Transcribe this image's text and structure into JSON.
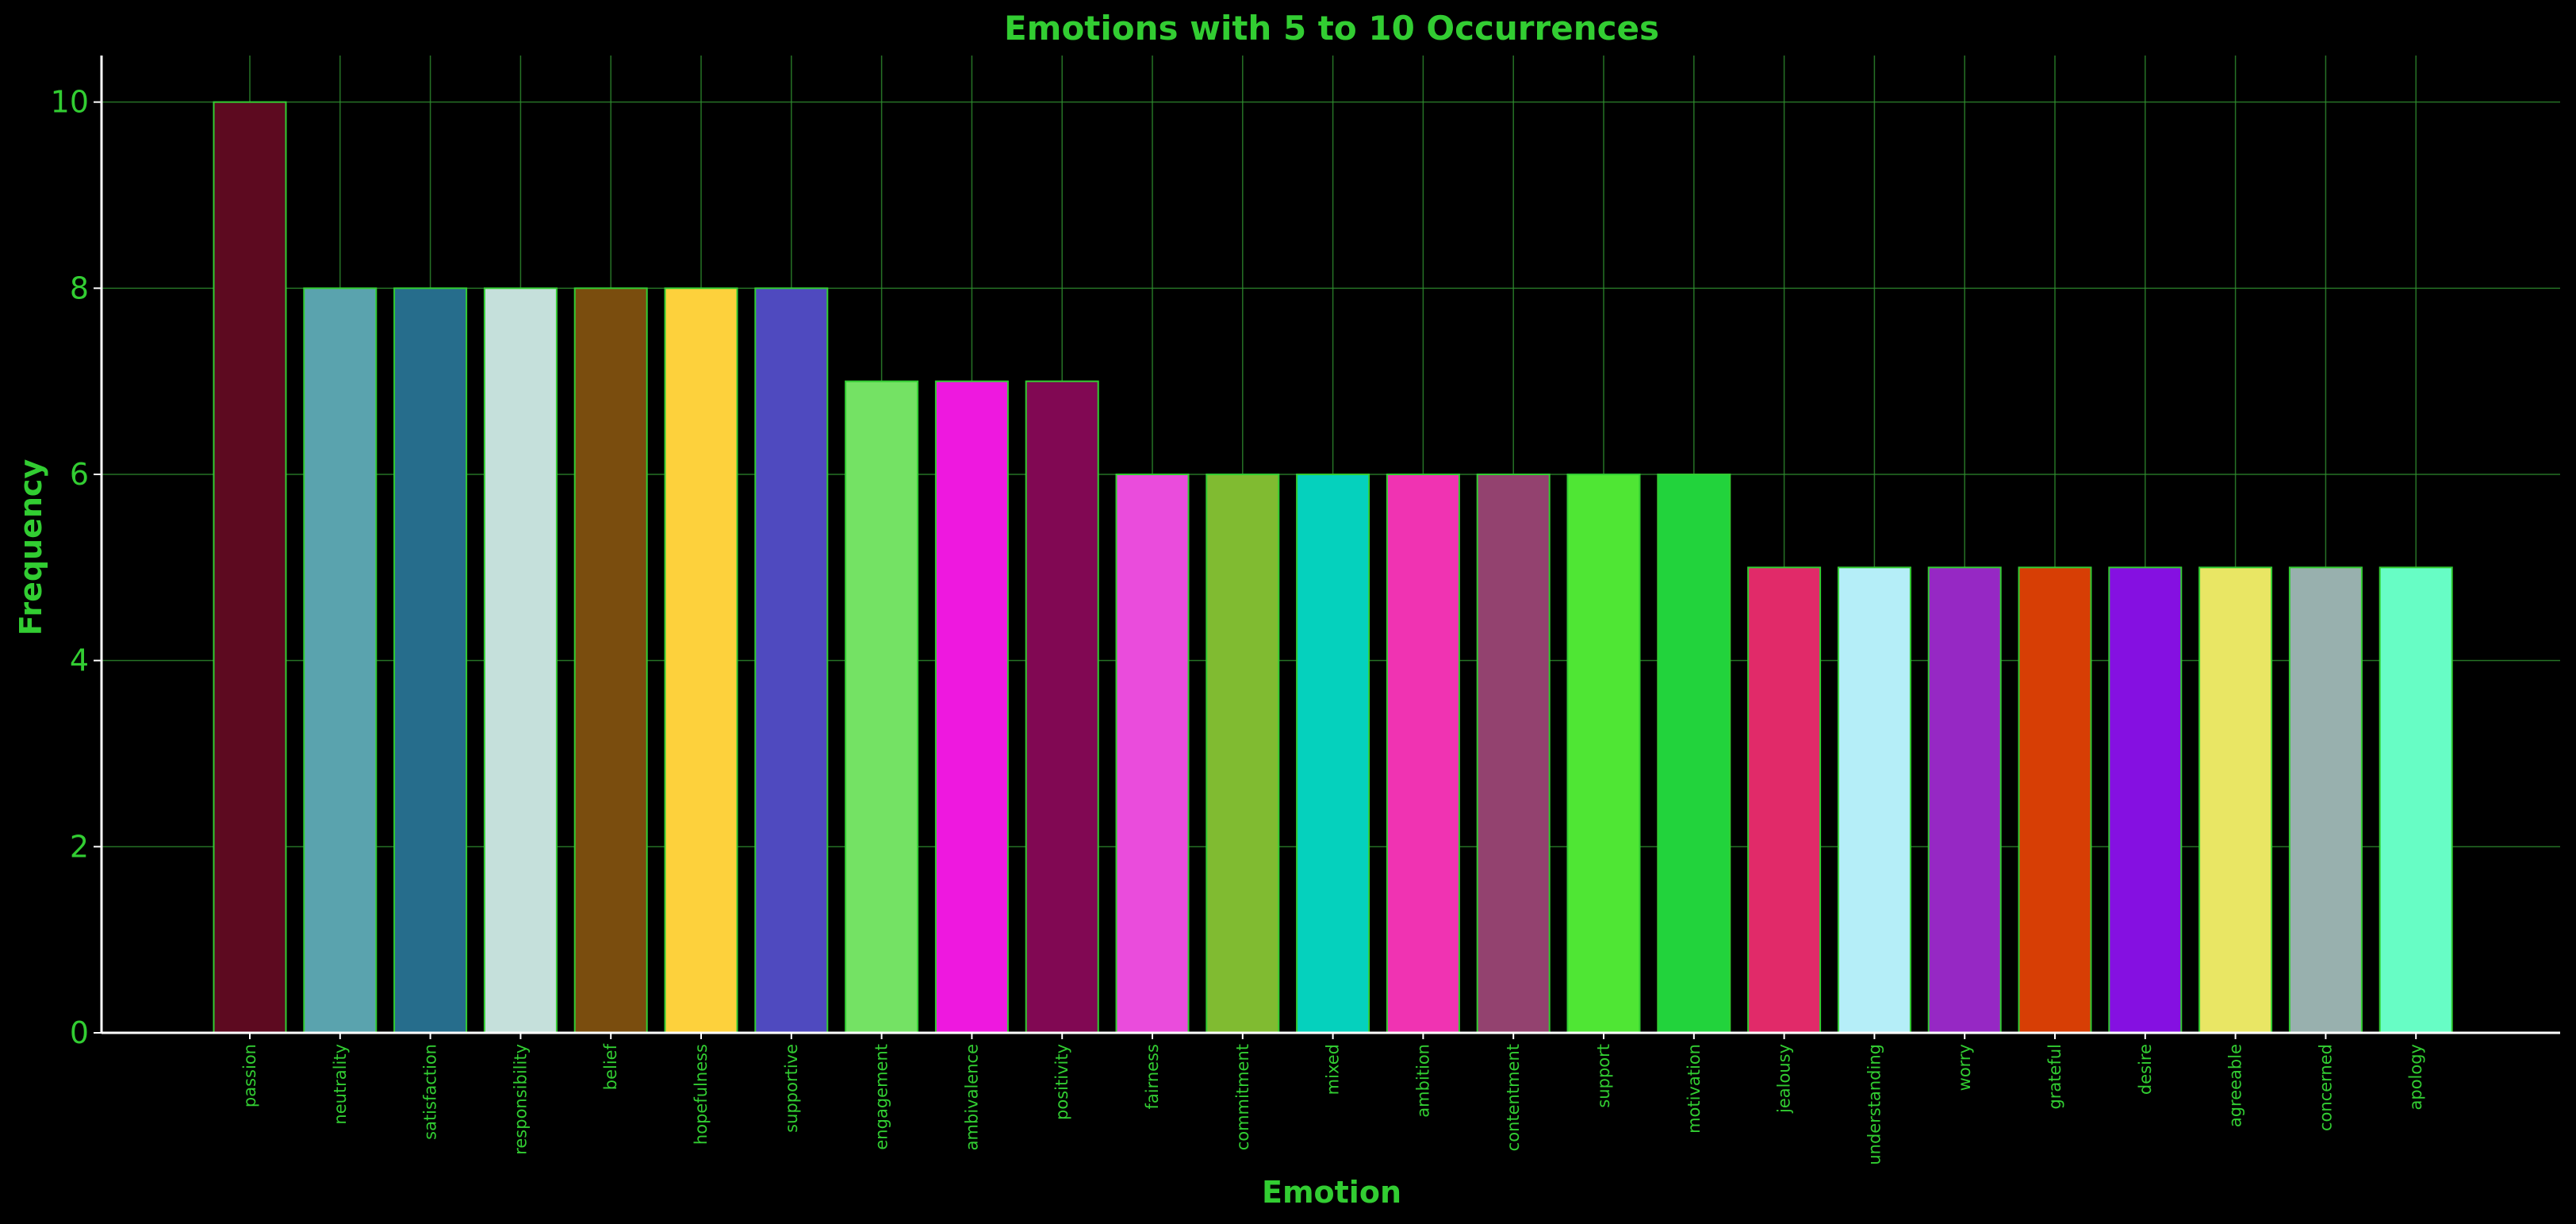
{
  "chart_data": {
    "type": "bar",
    "title": "Emotions with 5 to 10 Occurrences",
    "xlabel": "Emotion",
    "ylabel": "Frequency",
    "ylim": [
      0,
      10.5
    ],
    "yticks": [
      0,
      2,
      4,
      6,
      8,
      10
    ],
    "grid": true,
    "categories": [
      "passion",
      "neutrality",
      "satisfaction",
      "responsibility",
      "belief",
      "hopefulness",
      "supportive",
      "engagement",
      "ambivalence",
      "positivity",
      "fairness",
      "commitment",
      "mixed",
      "ambition",
      "contentment",
      "support",
      "motivation",
      "jealousy",
      "understanding",
      "worry",
      "grateful",
      "desire",
      "agreeable",
      "concerned",
      "apology"
    ],
    "values": [
      10,
      8,
      8,
      8,
      8,
      8,
      8,
      7,
      7,
      7,
      6,
      6,
      6,
      6,
      6,
      6,
      6,
      5,
      5,
      5,
      5,
      5,
      5,
      5,
      5
    ],
    "bar_colors": [
      "#5d0a20",
      "#5aa3ae",
      "#266d8c",
      "#c5e0db",
      "#7a4d0e",
      "#fdd13c",
      "#4f4abf",
      "#74e264",
      "#ee18df",
      "#810853",
      "#ea4cdc",
      "#80bb31",
      "#05d1bd",
      "#f033b2",
      "#93426f",
      "#4fe634",
      "#22d33c",
      "#e12a69",
      "#b5eef8",
      "#9628c4",
      "#d73e05",
      "#8510e1",
      "#e9e664",
      "#98b0ae",
      "#67fdc5"
    ],
    "colors": {
      "text": "#32cd32",
      "background": "#000000",
      "grid": "#2f8f2f",
      "bar_edge": "#32cd32",
      "axis": "#ffffff"
    }
  }
}
